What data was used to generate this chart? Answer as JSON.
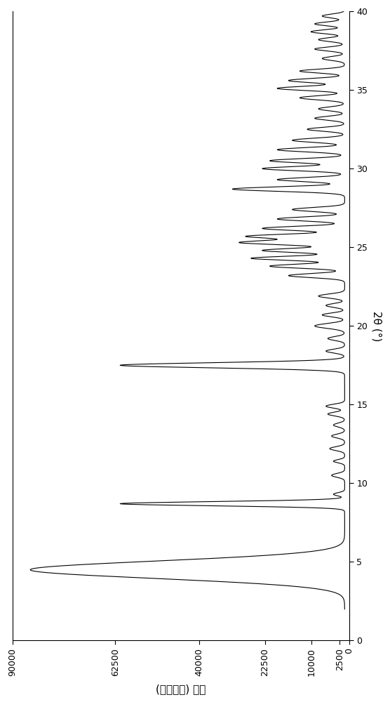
{
  "xlabel": "2θ (°)",
  "ylabel": "(任意单位) 强度",
  "xlim_intensity": [
    90000,
    0
  ],
  "ylim_2theta": [
    0,
    40
  ],
  "yticks_2theta": [
    0,
    5,
    10,
    15,
    20,
    25,
    30,
    35,
    40
  ],
  "xticks_intensity": [
    0,
    2500,
    10000,
    22500,
    40000,
    62500,
    90000
  ],
  "xtick_labels": [
    "0",
    "2500",
    "10000",
    "22500",
    "40000",
    "62500",
    "90000"
  ],
  "line_color": "#000000",
  "background_color": "#ffffff",
  "figsize": [
    5.56,
    10.0
  ],
  "dpi": 100
}
